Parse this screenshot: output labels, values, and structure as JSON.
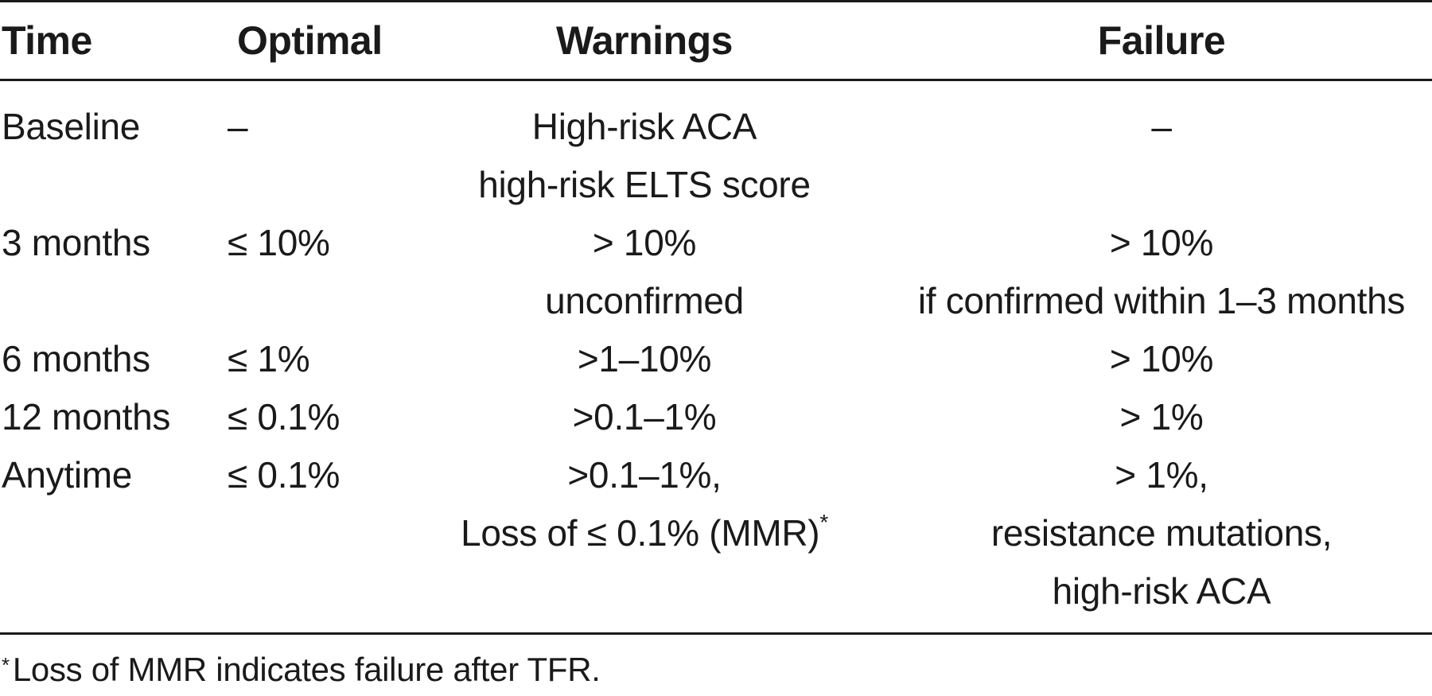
{
  "headers": {
    "time": "Time",
    "optimal": "Optimal",
    "warnings": "Warnings",
    "failure": "Failure"
  },
  "rows": [
    {
      "time": "Baseline",
      "optimal": "–",
      "warnings": [
        "High-risk ACA",
        "high-risk ELTS score"
      ],
      "failure": [
        "–"
      ]
    },
    {
      "time": "3 months",
      "optimal": "≤ 10%",
      "warnings": [
        "> 10%",
        "unconfirmed"
      ],
      "failure": [
        "> 10%",
        "if confirmed within 1–3 months"
      ]
    },
    {
      "time": "6 months",
      "optimal": "≤ 1%",
      "warnings": [
        ">1–10%"
      ],
      "failure": [
        "> 10%"
      ]
    },
    {
      "time": "12 months",
      "optimal": "≤ 0.1%",
      "warnings": [
        ">0.1–1%"
      ],
      "failure": [
        "> 1%"
      ]
    },
    {
      "time": "Anytime",
      "optimal": "≤ 0.1%",
      "warnings": [
        ">0.1–1%,",
        "Loss of ≤ 0.1% (MMR)"
      ],
      "warnings_footnote_mark": "*",
      "failure": [
        "> 1%,",
        "resistance mutations,",
        "high-risk ACA"
      ]
    }
  ],
  "footnote": {
    "mark": "*",
    "text": "Loss of MMR indicates failure after TFR."
  }
}
